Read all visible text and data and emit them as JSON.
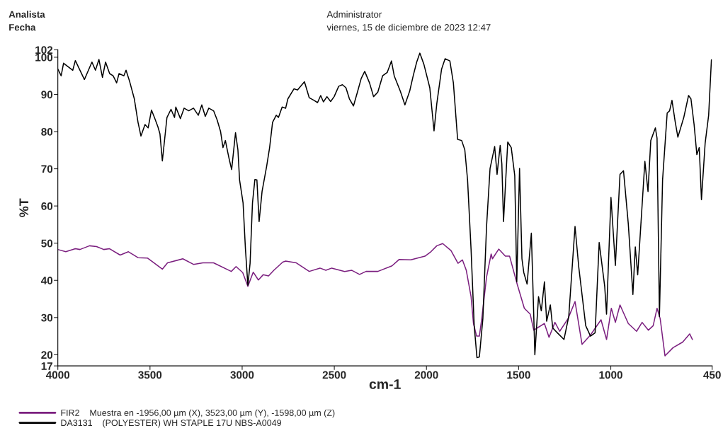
{
  "chart_data": {
    "type": "line",
    "xlabel": "cm-1",
    "ylabel": "%T",
    "xlim": [
      4000,
      450
    ],
    "ylim": [
      17,
      102
    ],
    "xticks": [
      4000,
      3500,
      3000,
      2500,
      2000,
      1500,
      1000,
      450
    ],
    "yticks": [
      17,
      20,
      30,
      40,
      50,
      60,
      70,
      80,
      90,
      100,
      102
    ],
    "grid": false,
    "legend": "bottom left",
    "marker": "none",
    "line_style": "solid",
    "annotations": [
      "Analista",
      "Fecha",
      "Administrator",
      "viernes, 15 de diciembre de 2023 12:47"
    ],
    "series": [
      {
        "name": "FIR2    Muestra en -1956,00 µm (X), 3523,00 µm (Y), -1598,00 µm (Z)",
        "color": "#7b1f7f",
        "x": [
          4000,
          3957,
          3905,
          3880,
          3828,
          3790,
          3751,
          3719,
          3662,
          3617,
          3565,
          3514,
          3433,
          3405,
          3322,
          3264,
          3213,
          3155,
          3059,
          3033,
          2997,
          2969,
          2940,
          2912,
          2886,
          2857,
          2828,
          2780,
          2764,
          2706,
          2636,
          2578,
          2546,
          2514,
          2444,
          2405,
          2363,
          2328,
          2264,
          2187,
          2149,
          2085,
          2008,
          1976,
          1944,
          1912,
          1867,
          1829,
          1805,
          1784,
          1758,
          1745,
          1728,
          1713,
          1700,
          1674,
          1649,
          1642,
          1608,
          1572,
          1549,
          1508,
          1469,
          1437,
          1418,
          1360,
          1335,
          1303,
          1277,
          1232,
          1194,
          1156,
          1110,
          1053,
          1023,
          997,
          975,
          950,
          905,
          860,
          830,
          796,
          770,
          749,
          732,
          706,
          662,
          610,
          572,
          557
        ],
        "values": [
          48.3,
          47.7,
          48.5,
          48.3,
          49.3,
          49.1,
          48.3,
          48.5,
          46.8,
          47.7,
          46.1,
          46.0,
          43.0,
          44.7,
          45.8,
          44.3,
          44.7,
          44.7,
          42.4,
          43.7,
          42.1,
          38.4,
          42.2,
          40.1,
          41.5,
          41.2,
          42.7,
          44.9,
          45.2,
          44.7,
          42.4,
          43.3,
          42.7,
          43.3,
          42.4,
          42.7,
          41.6,
          42.4,
          42.4,
          43.9,
          45.6,
          45.5,
          46.5,
          47.7,
          49.3,
          49.9,
          48.0,
          44.6,
          45.5,
          42.7,
          35.6,
          28.4,
          25.0,
          25.0,
          29.7,
          40.9,
          47.1,
          45.8,
          48.4,
          46.5,
          46.5,
          39.0,
          32.5,
          30.9,
          26.6,
          28.4,
          24.7,
          28.7,
          26.3,
          29.7,
          34.3,
          22.8,
          25.3,
          29.4,
          24.1,
          32.5,
          28.7,
          33.4,
          28.4,
          26.3,
          28.7,
          26.6,
          27.8,
          32.5,
          29.7,
          19.7,
          21.9,
          23.4,
          25.6,
          24.1
        ]
      },
      {
        "name": "DA3131    (POLYESTER) WH STAPLE 17U NBS-A0049",
        "color": "#000000",
        "x": [
          4000,
          3982,
          3969,
          3919,
          3905,
          3856,
          3815,
          3796,
          3777,
          3758,
          3741,
          3719,
          3700,
          3681,
          3668,
          3642,
          3630,
          3610,
          3585,
          3565,
          3549,
          3527,
          3510,
          3492,
          3476,
          3457,
          3446,
          3433,
          3424,
          3408,
          3386,
          3367,
          3360,
          3335,
          3315,
          3290,
          3264,
          3238,
          3219,
          3200,
          3181,
          3155,
          3136,
          3117,
          3104,
          3091,
          3078,
          3069,
          3057,
          3036,
          3023,
          3014,
          2995,
          2982,
          2969,
          2957,
          2944,
          2931,
          2920,
          2908,
          2892,
          2867,
          2851,
          2835,
          2815,
          2803,
          2783,
          2764,
          2752,
          2719,
          2700,
          2662,
          2636,
          2610,
          2591,
          2574,
          2559,
          2540,
          2520,
          2501,
          2476,
          2456,
          2437,
          2418,
          2396,
          2373,
          2354,
          2335,
          2309,
          2287,
          2264,
          2238,
          2213,
          2190,
          2175,
          2142,
          2117,
          2091,
          2072,
          2053,
          2036,
          2014,
          1982,
          1959,
          1944,
          1918,
          1899,
          1873,
          1854,
          1831,
          1809,
          1792,
          1777,
          1758,
          1741,
          1726,
          1713,
          1694,
          1674,
          1655,
          1630,
          1617,
          1600,
          1591,
          1582,
          1559,
          1540,
          1521,
          1510,
          1495,
          1482,
          1472,
          1454,
          1431,
          1421,
          1412,
          1392,
          1377,
          1360,
          1348,
          1328,
          1315,
          1290,
          1254,
          1228,
          1194,
          1174,
          1136,
          1110,
          1085,
          1063,
          1033,
          1023,
          999,
          975,
          950,
          931,
          905,
          880,
          867,
          854,
          815,
          798,
          783,
          758,
          749,
          736,
          719,
          694,
          681,
          668,
          651,
          636,
          604,
          578,
          565,
          548,
          533,
          520,
          508,
          488,
          469,
          454
        ],
        "values": [
          96.8,
          95.0,
          98.4,
          96.5,
          99.1,
          94.0,
          98.7,
          96.5,
          99.4,
          94.6,
          98.7,
          95.6,
          95.0,
          93.1,
          95.6,
          95.0,
          96.5,
          93.4,
          88.8,
          82.5,
          78.8,
          81.9,
          81.0,
          85.8,
          83.8,
          81.3,
          79.4,
          72.1,
          76.3,
          83.8,
          86.0,
          83.8,
          86.6,
          83.5,
          86.3,
          85.6,
          86.3,
          84.4,
          87.2,
          84.1,
          86.3,
          85.6,
          83.2,
          80.0,
          75.7,
          77.6,
          74.4,
          72.3,
          69.8,
          79.7,
          75.1,
          67.0,
          60.8,
          48.3,
          38.7,
          44.6,
          60.8,
          67.1,
          67.0,
          55.8,
          63.9,
          70.7,
          75.7,
          82.5,
          84.4,
          83.8,
          86.6,
          86.3,
          88.8,
          91.5,
          91.2,
          93.4,
          89.1,
          88.4,
          87.8,
          89.7,
          88.0,
          89.4,
          88.1,
          89.4,
          92.2,
          92.6,
          91.8,
          88.8,
          86.9,
          90.9,
          94.3,
          96.2,
          93.1,
          89.4,
          90.6,
          95.0,
          95.9,
          99.0,
          95.0,
          90.9,
          87.2,
          90.9,
          95.0,
          98.7,
          101.1,
          98.1,
          91.8,
          80.2,
          87.5,
          96.8,
          99.6,
          99.0,
          93.1,
          77.9,
          77.6,
          75.1,
          67.0,
          48.3,
          27.8,
          19.2,
          19.4,
          29.7,
          54.5,
          70.1,
          76.0,
          68.5,
          76.3,
          71.3,
          55.8,
          77.2,
          75.7,
          68.2,
          39.6,
          70.1,
          45.8,
          42.1,
          39.0,
          52.7,
          35.9,
          20.0,
          35.6,
          31.8,
          39.6,
          29.0,
          33.4,
          27.2,
          25.9,
          24.1,
          30.3,
          54.5,
          43.7,
          27.8,
          25.0,
          25.9,
          50.2,
          38.4,
          30.9,
          62.3,
          44.0,
          68.5,
          69.5,
          55.2,
          36.2,
          49.0,
          41.5,
          72.0,
          63.9,
          77.6,
          81.0,
          78.2,
          30.3,
          67.0,
          85.0,
          85.6,
          88.4,
          82.8,
          78.5,
          83.8,
          89.7,
          88.8,
          81.9,
          73.8,
          75.7,
          61.7,
          76.9,
          84.4,
          99.3
        ]
      }
    ]
  }
}
